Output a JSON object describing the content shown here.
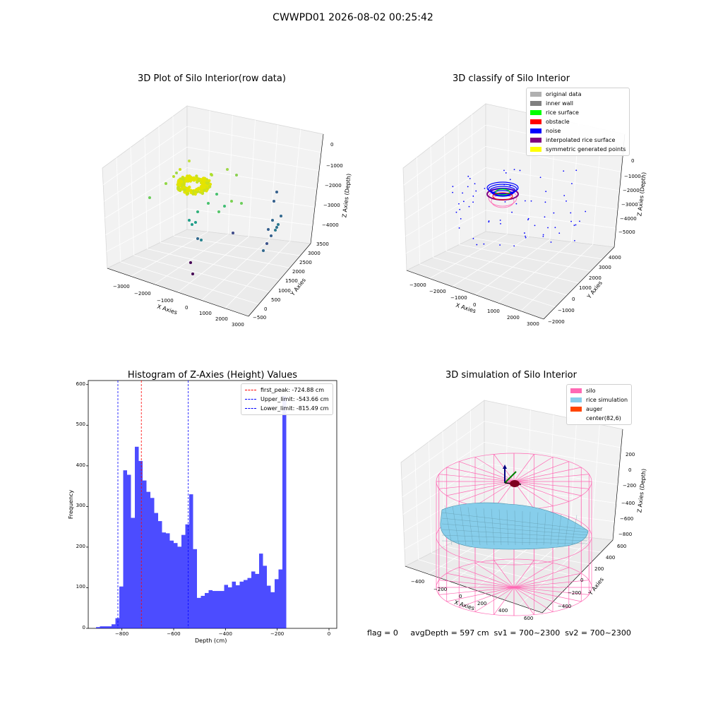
{
  "suptitle": "CWWPD01 2026-08-02 00:25:42",
  "footer": "flag = 0     avgDepth = 597 cm  sv1 = 700~2300  sv2 = 700~2300",
  "colors": {
    "original": "#b0b0b0",
    "inner_wall": "#808080",
    "rice_surface": "#00ff00",
    "obstacle": "#ff0000",
    "noise": "#0000ff",
    "interp": "#800080",
    "symmetric": "#ffff00",
    "hist": "#0000ff",
    "silo": "#ff69b4",
    "rice_sim": "#87ceeb",
    "auger": "#ff4500"
  },
  "chart_data": [
    {
      "type": "scatter",
      "title": "3D Plot of Silo Interior(row data)",
      "xlabel": "X Axies",
      "ylabel": "Y Axies",
      "zlabel": "Z Axies (Depth)",
      "x_ticks": [
        "−3000",
        "−2000",
        "−1000",
        "0",
        "1000",
        "2000",
        "3000"
      ],
      "y_ticks": [
        "−500",
        "0",
        "500",
        "1000",
        "1500",
        "2000",
        "2500",
        "3000",
        "3500"
      ],
      "z_ticks": [
        "0",
        "−1000",
        "−2000",
        "−3000",
        "−4000"
      ],
      "colormap": "viridis"
    },
    {
      "type": "scatter",
      "title": "3D classify of Silo Interior",
      "xlabel": "X Axies",
      "ylabel": "Y Axies",
      "zlabel": "Z Axies (Depth)",
      "x_ticks": [
        "−3000",
        "−2000",
        "−1000",
        "0",
        "1000",
        "2000",
        "3000"
      ],
      "y_ticks": [
        "−2000",
        "−1000",
        "0",
        "1000",
        "2000",
        "3000",
        "4000"
      ],
      "z_ticks": [
        "0",
        "−1000",
        "−2000",
        "−3000",
        "−4000",
        "−5000"
      ],
      "legend": [
        "original data",
        "inner wall",
        "rice surface",
        "obstacle",
        "noise",
        "interpolated rice surface",
        "symmetric generated points"
      ],
      "legend_position": "top-right"
    },
    {
      "type": "bar",
      "title": "Histogram of Z-Axies (Height) Values",
      "xlabel": "Depth (cm)",
      "ylabel": "Frequency",
      "bin_width": 15,
      "bin_start": -900,
      "values": [
        3,
        5,
        5,
        5,
        10,
        25,
        103,
        389,
        378,
        272,
        447,
        412,
        364,
        336,
        321,
        284,
        264,
        236,
        234,
        216,
        210,
        201,
        230,
        256,
        330,
        195,
        75,
        80,
        87,
        94,
        92,
        92,
        92,
        107,
        101,
        115,
        106,
        115,
        119,
        124,
        140,
        134,
        184,
        154,
        105,
        89,
        121,
        145,
        572
      ],
      "xlim": [
        -930,
        30
      ],
      "ylim": [
        0,
        610
      ],
      "x_ticks": [
        "−800",
        "−600",
        "−400",
        "−200",
        "0"
      ],
      "y_ticks": [
        "0",
        "100",
        "200",
        "300",
        "400",
        "500",
        "600"
      ],
      "vlines": [
        {
          "label": "first_peak: -724.88 cm",
          "x": -724.88,
          "color": "#ff0000"
        },
        {
          "label": "Upper_limit: -543.66 cm",
          "x": -543.66,
          "color": "#0000ff"
        },
        {
          "label": "Lower_limit: -815.49 cm",
          "x": -815.49,
          "color": "#0000ff"
        }
      ],
      "legend_position": "top-right"
    },
    {
      "type": "area",
      "title": "3D simulation of Silo Interior",
      "xlabel": "X Axies",
      "ylabel": "Y Axies",
      "zlabel": "Z Axies (Depth)",
      "x_ticks": [
        "−400",
        "−200",
        "0",
        "200",
        "400",
        "600"
      ],
      "y_ticks": [
        "−400",
        "−200",
        "0",
        "200",
        "400",
        "600"
      ],
      "z_ticks": [
        "200",
        "0",
        "−200",
        "−400",
        "−600",
        "−800"
      ],
      "legend": [
        "silo",
        "rice simulation",
        "auger",
        "center(82,6)"
      ],
      "legend_position": "top-right"
    }
  ]
}
